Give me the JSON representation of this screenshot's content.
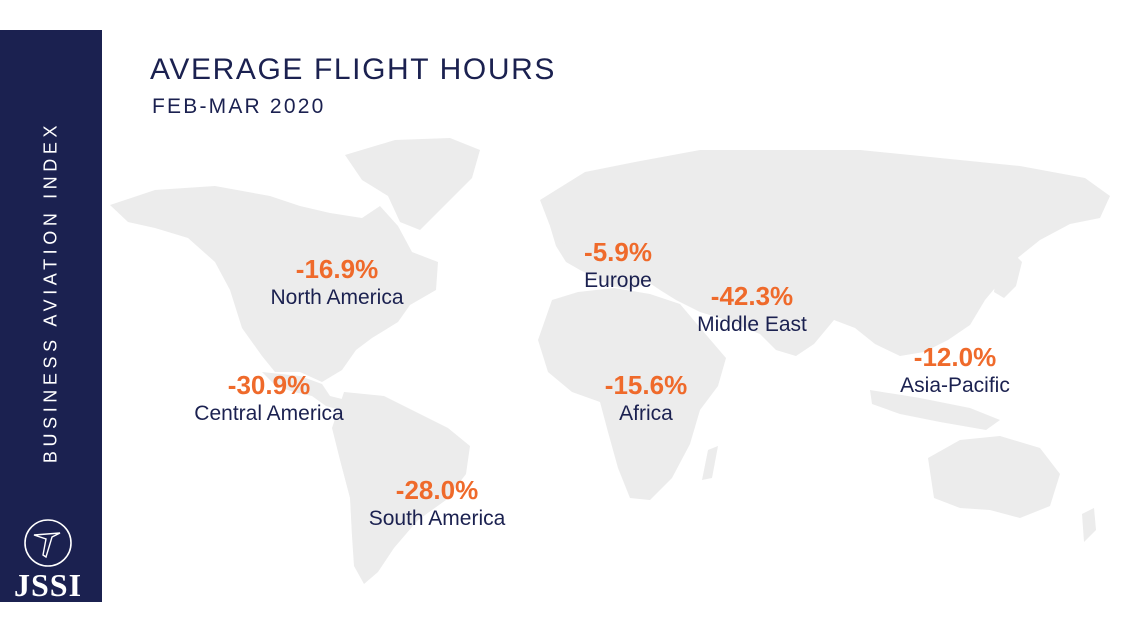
{
  "sidebar": {
    "vertical_text": "BUSINESS AVIATION INDEX",
    "logo_text": "JSSI"
  },
  "header": {
    "title": "AVERAGE FLIGHT HOURS",
    "subtitle": "FEB-MAR 2020"
  },
  "colors": {
    "navy": "#1b2150",
    "orange": "#ef6a2b",
    "land": "#ececec"
  },
  "chart_data": {
    "type": "map",
    "title": "AVERAGE FLIGHT HOURS",
    "subtitle": "FEB-MAR 2020",
    "unit": "% change",
    "regions": [
      {
        "name": "North America",
        "value": -16.9,
        "label": "-16.9%"
      },
      {
        "name": "Central America",
        "value": -30.9,
        "label": "-30.9%"
      },
      {
        "name": "South America",
        "value": -28.0,
        "label": "-28.0%"
      },
      {
        "name": "Europe",
        "value": -5.9,
        "label": "-5.9%"
      },
      {
        "name": "Middle East",
        "value": -42.3,
        "label": "-42.3%"
      },
      {
        "name": "Africa",
        "value": -15.6,
        "label": "-15.6%"
      },
      {
        "name": "Asia-Pacific",
        "value": -12.0,
        "label": "-12.0%"
      }
    ]
  }
}
